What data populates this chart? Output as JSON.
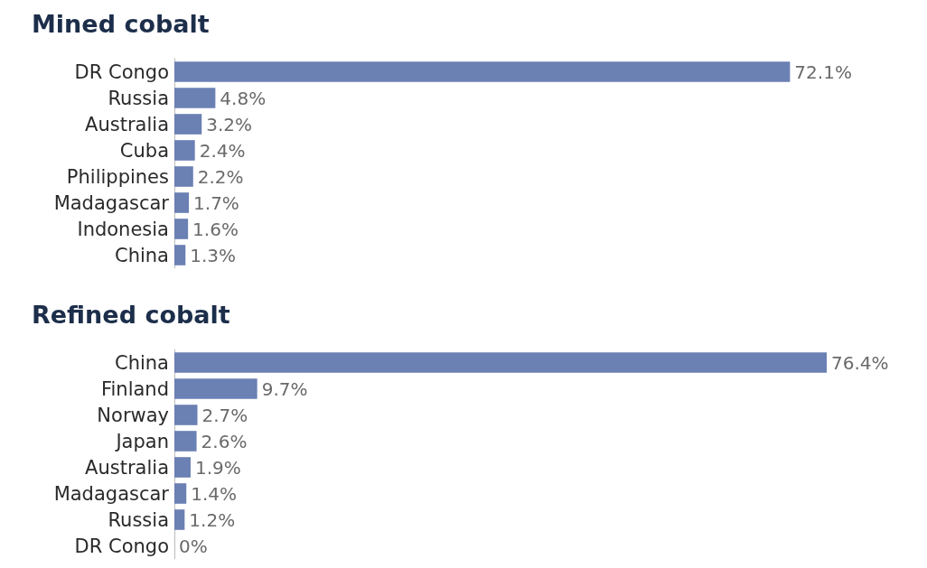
{
  "chart_data": [
    {
      "type": "bar",
      "orientation": "horizontal",
      "title": "Mined cobalt",
      "color": "#6b80b3",
      "categories": [
        "DR Congo",
        "Russia",
        "Australia",
        "Cuba",
        "Philippines",
        "Madagascar",
        "Indonesia",
        "China"
      ],
      "values": [
        72.1,
        4.8,
        3.2,
        2.4,
        2.2,
        1.7,
        1.6,
        1.3
      ],
      "value_labels": [
        "72.1%",
        "4.8%",
        "3.2%",
        "2.4%",
        "2.2%",
        "1.7%",
        "1.6%",
        "1.3%"
      ]
    },
    {
      "type": "bar",
      "orientation": "horizontal",
      "title": "Refined cobalt",
      "color": "#6b80b3",
      "categories": [
        "China",
        "Finland",
        "Norway",
        "Japan",
        "Australia",
        "Madagascar",
        "Russia",
        "DR Congo"
      ],
      "values": [
        76.4,
        9.7,
        2.7,
        2.6,
        1.9,
        1.4,
        1.2,
        0
      ],
      "value_labels": [
        "76.4%",
        "9.7%",
        "2.7%",
        "2.6%",
        "1.9%",
        "1.4%",
        "1.2%",
        "0%"
      ]
    }
  ]
}
